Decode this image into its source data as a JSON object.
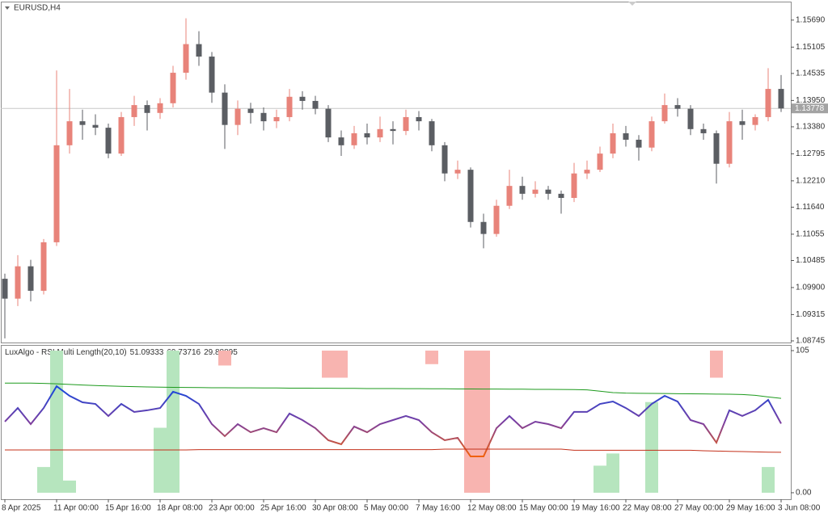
{
  "chart_data": [
    {
      "type": "candlestick",
      "title": "EURUSD,H4",
      "categories": [
        "8 Apr 2025",
        null,
        null,
        null,
        "11 Apr 00:00",
        null,
        null,
        null,
        "15 Apr 16:00",
        null,
        null,
        null,
        "18 Apr 08:00",
        null,
        null,
        null,
        "23 Apr 00:00",
        null,
        null,
        null,
        "25 Apr 16:00",
        null,
        null,
        null,
        "30 Apr 08:00",
        null,
        null,
        null,
        "5 May 00:00",
        null,
        null,
        null,
        "7 May 16:00",
        null,
        null,
        null,
        "12 May 08:00",
        null,
        null,
        null,
        "15 May 00:00",
        null,
        null,
        null,
        "19 May 16:00",
        null,
        null,
        null,
        "22 May 08:00",
        null,
        null,
        null,
        "27 May 00:00",
        null,
        null,
        null,
        "29 May 16:00",
        null,
        null,
        null,
        "3 Jun 08:00"
      ],
      "open": [
        1.1009,
        1.0966,
        1.1036,
        1.0983,
        1.1088,
        1.1298,
        1.135,
        1.1342,
        1.1336,
        1.128,
        1.1359,
        1.1385,
        1.1368,
        1.1389,
        1.1455,
        1.1517,
        1.149,
        1.1412,
        1.1342,
        1.1377,
        1.1368,
        1.135,
        1.1359,
        1.1403,
        1.1394,
        1.1377,
        1.1315,
        1.1298,
        1.1324,
        1.1315,
        1.1333,
        1.1329,
        1.1359,
        1.135,
        1.1298,
        1.1237,
        1.1245,
        1.1132,
        1.1106,
        1.1167,
        1.121,
        1.1193,
        1.1202,
        1.1193,
        1.1184,
        1.1237,
        1.1245,
        1.128,
        1.1324,
        1.131,
        1.1293,
        1.135,
        1.1385,
        1.1377,
        1.1333,
        1.1324,
        1.1258,
        1.135,
        1.1342,
        1.1359,
        1.142
      ],
      "high": [
        1.102,
        1.106,
        1.105,
        1.1095,
        1.146,
        1.142,
        1.1375,
        1.1365,
        1.1345,
        1.137,
        1.1405,
        1.1395,
        1.14,
        1.147,
        1.1573,
        1.1545,
        1.15,
        1.143,
        1.1395,
        1.139,
        1.138,
        1.1375,
        1.142,
        1.1415,
        1.1405,
        1.1385,
        1.133,
        1.134,
        1.1345,
        1.136,
        1.135,
        1.1375,
        1.1372,
        1.1355,
        1.1305,
        1.1265,
        1.125,
        1.115,
        1.118,
        1.1245,
        1.123,
        1.122,
        1.121,
        1.12,
        1.126,
        1.1265,
        1.1295,
        1.1345,
        1.134,
        1.132,
        1.136,
        1.141,
        1.14,
        1.1385,
        1.1345,
        1.133,
        1.137,
        1.1375,
        1.1365,
        1.1465,
        1.145
      ],
      "low": [
        1.088,
        1.095,
        1.096,
        1.0975,
        1.108,
        1.128,
        1.131,
        1.132,
        1.127,
        1.1275,
        1.134,
        1.133,
        1.1355,
        1.138,
        1.144,
        1.147,
        1.139,
        1.129,
        1.132,
        1.1345,
        1.133,
        1.1335,
        1.135,
        1.1375,
        1.1365,
        1.1305,
        1.1275,
        1.129,
        1.13,
        1.1305,
        1.13,
        1.132,
        1.133,
        1.1285,
        1.122,
        1.1225,
        1.112,
        1.1075,
        1.11,
        1.116,
        1.118,
        1.1185,
        1.118,
        1.115,
        1.1175,
        1.1225,
        1.124,
        1.127,
        1.1295,
        1.1265,
        1.1285,
        1.1345,
        1.136,
        1.132,
        1.131,
        1.1215,
        1.125,
        1.131,
        1.133,
        1.135,
        1.137
      ],
      "close": [
        1.0966,
        1.1036,
        1.0983,
        1.1088,
        1.1298,
        1.135,
        1.1342,
        1.1336,
        1.128,
        1.1359,
        1.1385,
        1.1368,
        1.1389,
        1.1455,
        1.1517,
        1.149,
        1.1412,
        1.1342,
        1.1377,
        1.1368,
        1.135,
        1.1359,
        1.1403,
        1.1394,
        1.1377,
        1.1315,
        1.1298,
        1.1324,
        1.1315,
        1.1333,
        1.1329,
        1.1359,
        1.135,
        1.1298,
        1.1237,
        1.1245,
        1.1132,
        1.1106,
        1.1167,
        1.121,
        1.1193,
        1.1202,
        1.1193,
        1.1184,
        1.1237,
        1.1245,
        1.128,
        1.1324,
        1.131,
        1.1293,
        1.135,
        1.1385,
        1.1377,
        1.1333,
        1.1324,
        1.1258,
        1.135,
        1.1342,
        1.1359,
        1.142,
        1.13778
      ],
      "colors": {
        "up": "#e8837a",
        "down": "#5b5e63"
      },
      "current_price": 1.13778,
      "current_price_color": "#a3a3a3",
      "ylim": [
        1.0871,
        1.1609
      ],
      "yticks": [
        {
          "value": 1.1569,
          "label": "1.15690"
        },
        1.15105,
        1.14535,
        {
          "value": 1.1395,
          "label": "1.13950"
        },
        {
          "value": 1.1338,
          "label": "1.13380"
        },
        1.12795,
        {
          "value": 1.1221,
          "label": "1.12210"
        },
        {
          "value": 1.1164,
          "label": "1.11640"
        },
        1.11055,
        1.10485,
        {
          "value": 1.099,
          "label": "1.09900"
        },
        1.09315,
        1.08745
      ]
    },
    {
      "type": "line",
      "title": "LuxAlgo - RSI Multi Length(20,10)",
      "header_values": [
        51.09333,
        69.73716,
        29.88895
      ],
      "series": [
        {
          "colors": [
            "#1f47d8",
            "#7a3ea2",
            "#f0600c"
          ],
          "values": [
            52.5,
            62.6,
            50.7,
            62.6,
            78.7,
            71.6,
            66.8,
            65.6,
            56.7,
            65.6,
            59.7,
            60.9,
            62.6,
            74.6,
            71.6,
            65.6,
            50.7,
            41.8,
            50.7,
            44.7,
            47.7,
            44.7,
            58.5,
            53.7,
            47.7,
            38.8,
            35.8,
            48.9,
            44.7,
            50.7,
            53.7,
            56.7,
            53.7,
            44.7,
            38.8,
            40.6,
            26.8,
            26.8,
            47.7,
            56.7,
            47.7,
            52.5,
            50.7,
            47.7,
            59.7,
            59.7,
            65.6,
            67.4,
            62.6,
            56.7,
            65.6,
            71.6,
            67.4,
            53.7,
            50.7,
            37,
            60.9,
            56.7,
            60.9,
            68.6,
            51.09333
          ]
        },
        {
          "color": "#1d9a1d",
          "values": [
            81,
            81,
            81,
            80.8,
            80.5,
            80,
            79.6,
            79.2,
            78.9,
            78.6,
            78.4,
            78.2,
            78,
            77.9,
            77.8,
            77.7,
            77.6,
            77.6,
            77.5,
            77.5,
            77.4,
            77.4,
            77.3,
            77.3,
            77.2,
            77.2,
            77.1,
            77.1,
            77,
            77,
            77,
            76.9,
            76.9,
            76.8,
            76.8,
            76.7,
            76.7,
            76.6,
            76.6,
            76.5,
            76.5,
            76.4,
            76.4,
            76.3,
            76.2,
            76,
            75,
            74,
            73.6,
            73.5,
            73.4,
            73.3,
            73.2,
            73.1,
            73,
            72.9,
            72.8,
            72.6,
            72,
            70.8,
            69.73716
          ]
        },
        {
          "color": "#c4301a",
          "values": [
            31.6,
            31.6,
            31.6,
            31.6,
            31.6,
            31.6,
            31.6,
            31.6,
            31.6,
            31.6,
            31.6,
            31.6,
            31.6,
            31.6,
            31.6,
            31.8,
            31.8,
            31.8,
            31.8,
            31.8,
            31.8,
            31.8,
            31.8,
            31.8,
            31.8,
            31.8,
            31.8,
            31.8,
            31.8,
            31.8,
            31.8,
            31.8,
            31.8,
            31.8,
            32.2,
            32.2,
            32.2,
            32.2,
            32.2,
            32.2,
            32.2,
            32.2,
            32.2,
            32.2,
            31.4,
            31.4,
            31.4,
            31.4,
            31.4,
            31.4,
            31.4,
            31.4,
            31.4,
            31.4,
            31,
            30.8,
            30.6,
            30.4,
            30.2,
            30,
            29.88895
          ]
        }
      ],
      "up_bars": {
        "color": "#b6e5be",
        "values": [
          null,
          null,
          null,
          19,
          105,
          9,
          null,
          null,
          null,
          null,
          null,
          null,
          48,
          105,
          null,
          null,
          null,
          null,
          null,
          null,
          null,
          null,
          null,
          null,
          null,
          null,
          null,
          null,
          null,
          null,
          null,
          null,
          null,
          null,
          null,
          null,
          null,
          null,
          null,
          null,
          null,
          null,
          null,
          null,
          null,
          null,
          20,
          29,
          null,
          null,
          67,
          null,
          null,
          null,
          null,
          null,
          null,
          null,
          null,
          19,
          null
        ]
      },
      "down_bars": {
        "color": "#f8b4b0",
        "values": [
          null,
          null,
          null,
          null,
          null,
          null,
          null,
          null,
          null,
          null,
          null,
          null,
          null,
          null,
          null,
          null,
          null,
          94,
          null,
          null,
          null,
          null,
          null,
          null,
          null,
          85,
          85,
          null,
          null,
          null,
          null,
          null,
          null,
          95,
          null,
          null,
          0,
          0,
          null,
          null,
          null,
          null,
          null,
          null,
          null,
          null,
          null,
          null,
          null,
          null,
          null,
          null,
          null,
          null,
          null,
          85,
          null,
          null,
          null,
          null,
          null
        ]
      },
      "ylim": [
        -4.8,
        109.2
      ],
      "yticks": [
        105,
        {
          "value": 0,
          "label": "0.00"
        }
      ]
    }
  ]
}
